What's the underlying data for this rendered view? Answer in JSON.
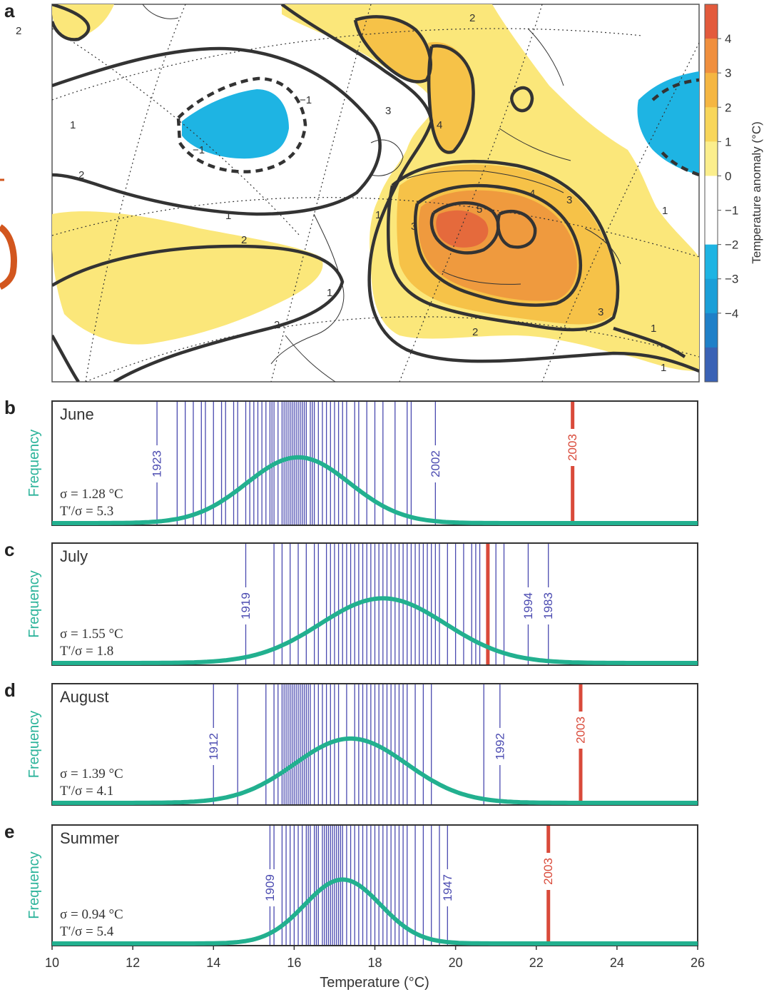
{
  "panels": {
    "a": "a",
    "b": "b",
    "c": "c",
    "d": "d",
    "e": "e"
  },
  "map": {
    "colorbar_label": "Temperature anomaly (°C)",
    "colorbar_ticks": [
      "4",
      "3",
      "2",
      "1",
      "0",
      "−1",
      "−2",
      "−3",
      "−4"
    ],
    "colorbar_colors": [
      "#e35a3c",
      "#f08f3e",
      "#f5b642",
      "#f8d65a",
      "#fbee8c",
      "#ffffff",
      "#ffffff",
      "#1eb4e3",
      "#1a9fd8",
      "#1f80c8",
      "#3a62b5"
    ],
    "contour_labels": [
      "1",
      "2",
      "3",
      "4",
      "5",
      "−1",
      "−1",
      "1",
      "2",
      "2",
      "3",
      "1",
      "2",
      "2",
      "1",
      "1",
      "1",
      "2",
      "3",
      "4",
      "3",
      "1"
    ],
    "colors": {
      "warm1": "#fbe77a",
      "warm2": "#f6c248",
      "warm3": "#ef9a3e",
      "warm4": "#e56a3c",
      "cold1": "#1eb4e3",
      "contour": "#333333"
    }
  },
  "x_axis": {
    "ticks": [
      "10",
      "12",
      "14",
      "16",
      "18",
      "20",
      "22",
      "24",
      "26"
    ],
    "title": "Temperature (°C)"
  },
  "y_label": "Frequency",
  "chart_data": [
    {
      "type": "histogram-with-normal",
      "panel": "b",
      "title": "June",
      "sigma_text": "σ = 1.28 °C",
      "ratio_text": "T′/σ = 5.3",
      "mean": 16.1,
      "sigma": 1.28,
      "xlim": [
        10,
        26
      ],
      "years": [
        12.6,
        13.1,
        13.3,
        13.5,
        13.7,
        13.8,
        14.0,
        14.2,
        14.3,
        14.5,
        14.6,
        14.8,
        14.9,
        15.0,
        15.1,
        15.2,
        15.3,
        15.4,
        15.45,
        15.5,
        15.6,
        15.7,
        15.75,
        15.8,
        15.85,
        15.9,
        15.95,
        16.0,
        16.05,
        16.1,
        16.15,
        16.2,
        16.25,
        16.3,
        16.4,
        16.45,
        16.5,
        16.6,
        16.7,
        16.8,
        16.9,
        17.0,
        17.1,
        17.2,
        17.3,
        17.5,
        17.6,
        17.8,
        18.0,
        18.2,
        18.5,
        18.8,
        18.9,
        19.5
      ],
      "labeled_years": [
        {
          "label": "1923",
          "x": 12.6
        },
        {
          "label": "2002",
          "x": 19.5
        }
      ],
      "highlight": {
        "label": "2003",
        "x": 22.9
      }
    },
    {
      "type": "histogram-with-normal",
      "panel": "c",
      "title": "July",
      "sigma_text": "σ = 1.55 °C",
      "ratio_text": "T′/σ = 1.8",
      "mean": 18.2,
      "sigma": 1.55,
      "xlim": [
        10,
        26
      ],
      "years": [
        14.8,
        15.5,
        15.7,
        15.9,
        16.1,
        16.3,
        16.5,
        16.6,
        16.8,
        16.9,
        17.0,
        17.1,
        17.2,
        17.3,
        17.4,
        17.5,
        17.6,
        17.7,
        17.8,
        17.9,
        18.0,
        18.1,
        18.2,
        18.3,
        18.4,
        18.5,
        18.6,
        18.7,
        18.8,
        18.9,
        19.0,
        19.1,
        19.2,
        19.3,
        19.4,
        19.5,
        19.6,
        19.8,
        20.0,
        20.2,
        20.4,
        20.5,
        20.6,
        21.0,
        21.2,
        21.8,
        22.3
      ],
      "labeled_years": [
        {
          "label": "1919",
          "x": 14.8
        },
        {
          "label": "1994",
          "x": 21.8
        },
        {
          "label": "1983",
          "x": 22.3
        }
      ],
      "highlight": {
        "label": "",
        "x": 20.8
      }
    },
    {
      "type": "histogram-with-normal",
      "panel": "d",
      "title": "August",
      "sigma_text": "σ = 1.39 °C",
      "ratio_text": "T′/σ = 4.1",
      "mean": 17.4,
      "sigma": 1.39,
      "xlim": [
        10,
        26
      ],
      "years": [
        14.0,
        14.6,
        15.3,
        15.5,
        15.6,
        15.7,
        15.75,
        15.8,
        15.85,
        15.9,
        15.95,
        16.0,
        16.05,
        16.1,
        16.15,
        16.2,
        16.25,
        16.3,
        16.35,
        16.4,
        16.5,
        16.6,
        16.7,
        16.8,
        16.9,
        17.0,
        17.1,
        17.3,
        17.5,
        17.6,
        17.7,
        17.8,
        17.9,
        18.0,
        18.1,
        18.2,
        18.3,
        18.4,
        18.5,
        18.6,
        18.7,
        18.8,
        19.0,
        19.2,
        19.4,
        20.7,
        21.1
      ],
      "labeled_years": [
        {
          "label": "1912",
          "x": 14.0
        },
        {
          "label": "1992",
          "x": 21.1
        }
      ],
      "highlight": {
        "label": "2003",
        "x": 23.1
      }
    },
    {
      "type": "histogram-with-normal",
      "panel": "e",
      "title": "Summer",
      "sigma_text": "σ = 0.94 °C",
      "ratio_text": "T′/σ = 5.4",
      "mean": 17.2,
      "sigma": 0.94,
      "xlim": [
        10,
        26
      ],
      "years": [
        15.4,
        15.5,
        15.7,
        15.8,
        15.9,
        16.0,
        16.1,
        16.2,
        16.3,
        16.35,
        16.4,
        16.5,
        16.55,
        16.6,
        16.7,
        16.75,
        16.8,
        16.85,
        16.9,
        16.95,
        17.0,
        17.05,
        17.1,
        17.15,
        17.2,
        17.3,
        17.4,
        17.5,
        17.6,
        17.7,
        17.8,
        17.9,
        18.0,
        18.1,
        18.2,
        18.3,
        18.4,
        18.5,
        18.6,
        18.7,
        18.8,
        19.0,
        19.2,
        19.4,
        19.6,
        19.8
      ],
      "labeled_years": [
        {
          "label": "1909",
          "x": 15.4
        },
        {
          "label": "1947",
          "x": 19.8
        }
      ],
      "highlight": {
        "label": "2003",
        "x": 22.3
      }
    }
  ]
}
